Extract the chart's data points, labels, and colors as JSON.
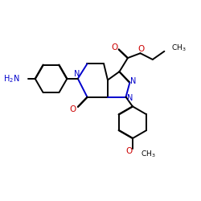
{
  "bg_color": "#ffffff",
  "bond_color": "#000000",
  "n_color": "#0000cc",
  "o_color": "#cc0000",
  "lw": 1.4,
  "dbo": 0.012,
  "figsize": [
    2.5,
    2.5
  ],
  "dpi": 100,
  "xlim": [
    0,
    10
  ],
  "ylim": [
    0,
    10
  ]
}
